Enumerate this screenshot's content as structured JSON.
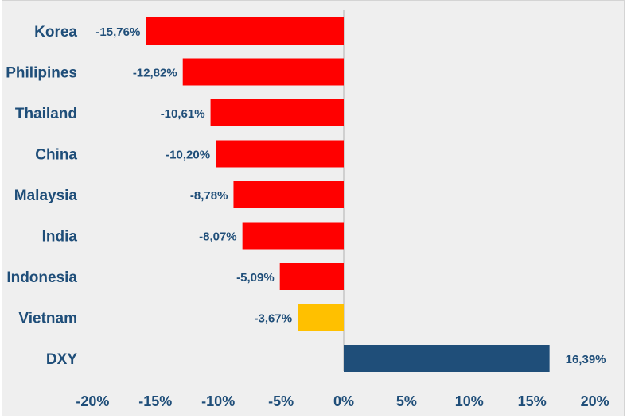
{
  "chart_data": {
    "type": "bar",
    "orientation": "horizontal",
    "categories": [
      "Korea",
      "Philipines",
      "Thailand",
      "China",
      "Malaysia",
      "India",
      "Indonesia",
      "Vietnam",
      "DXY"
    ],
    "values": [
      -15.76,
      -12.82,
      -10.61,
      -10.2,
      -8.78,
      -8.07,
      -5.09,
      -3.67,
      16.39
    ],
    "value_labels": [
      "-15,76%",
      "-12,82%",
      "-10,61%",
      "-10,20%",
      "-8,78%",
      "-8,07%",
      "-5,09%",
      "-3,67%",
      "16,39%"
    ],
    "bar_colors": [
      "#ff0000",
      "#ff0000",
      "#ff0000",
      "#ff0000",
      "#ff0000",
      "#ff0000",
      "#ff0000",
      "#ffc000",
      "#1f4e79"
    ],
    "xlim": [
      -20,
      20
    ],
    "x_ticks": [
      -20,
      -15,
      -10,
      -5,
      0,
      5,
      10,
      15,
      20
    ],
    "x_tick_labels": [
      "-20%",
      "-15%",
      "-10%",
      "-5%",
      "0%",
      "5%",
      "10%",
      "15%",
      "20%"
    ],
    "title": "",
    "xlabel": "",
    "ylabel": "",
    "grid": false,
    "legend": "none",
    "colors": {
      "label_text": "#1f4e79",
      "zero_line": "#d0d0d0",
      "background": "#efefef"
    }
  }
}
